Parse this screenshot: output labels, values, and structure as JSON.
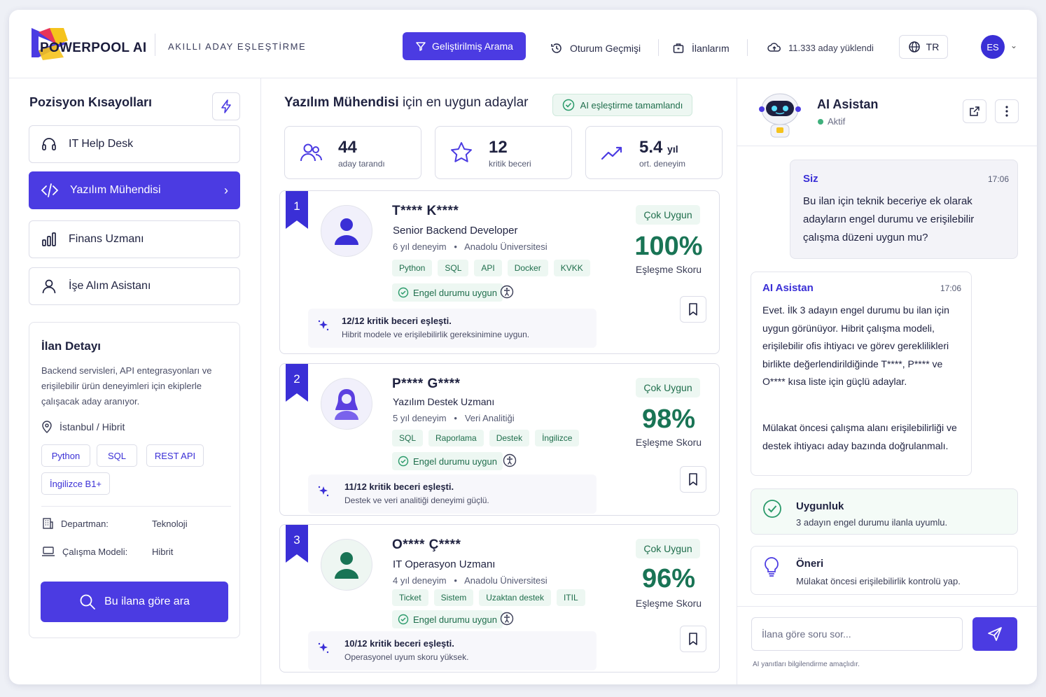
{
  "header": {
    "brand": "POWERPOOL AI",
    "tagline": "AKILLI ADAY EŞLEŞTİRME",
    "enhanced_search": "Geliştirilmiş Arama",
    "session_history": "Oturum Geçmişi",
    "my_listings": "İlanlarım",
    "uploaded": "11.333 aday yüklendi",
    "language": "TR",
    "avatar_initials": "ES"
  },
  "sidebar": {
    "title": "Pozisyon Kısayolları",
    "positions": [
      {
        "label": "IT Help Desk",
        "icon": "headset-icon"
      },
      {
        "label": "Yazılım Mühendisi",
        "icon": "code-icon",
        "active": true
      },
      {
        "label": "Finans Uzmanı",
        "icon": "bar-chart-icon"
      },
      {
        "label": "İşe Alım Asistanı",
        "icon": "user-icon"
      }
    ],
    "job": {
      "title": "İlan Detayı",
      "description": "Backend servisleri, API entegrasyonları ve erişilebilir ürün deneyimleri için ekiplerle çalışacak aday aranıyor.",
      "location": "İstanbul / Hibrit",
      "skills": [
        "Python",
        "SQL",
        "REST API",
        "İngilizce B1+"
      ],
      "department_label": "Departman:",
      "department": "Teknoloji",
      "work_model_label": "Çalışma Modeli:",
      "work_model": "Hibrit",
      "search_button": "Bu ilana göre ara"
    }
  },
  "main": {
    "title_bold": "Yazılım Mühendisi",
    "title_rest": "için en uygun adaylar",
    "status": "AI eşleştirme tamamlandı",
    "stats": [
      {
        "value": "44",
        "unit": "",
        "label": "aday tarandı"
      },
      {
        "value": "12",
        "unit": "",
        "label": "kritik beceri"
      },
      {
        "value": "5.4",
        "unit": "yıl",
        "label": "ort. deneyim"
      }
    ],
    "candidates": [
      {
        "rank": "1",
        "name": "T**** K****",
        "title": "Senior Backend Developer",
        "experience": "6 yıl deneyim",
        "school": "Anadolu Üniversitesi",
        "skills": [
          "Python",
          "SQL",
          "API",
          "Docker",
          "KVKK"
        ],
        "accessibility": "Engel durumu uygun",
        "note_title": "12/12 kritik beceri eşleşti.",
        "note_text": "Hibrit modele ve erişilebilirlik gereksinimine uygun.",
        "badge": "Çok Uygun",
        "score": "100%",
        "score_label": "Eşleşme Skoru",
        "color": "#3a2fd6"
      },
      {
        "rank": "2",
        "name": "P**** G****",
        "title": "Yazılım Destek Uzmanı",
        "experience": "5 yıl deneyim",
        "school": "Veri Analitiği",
        "skills": [
          "SQL",
          "Raporlama",
          "Destek",
          "İngilizce"
        ],
        "accessibility": "Engel durumu uygun",
        "note_title": "11/12 kritik beceri eşleşti.",
        "note_text": "Destek ve veri analitiği deneyimi güçlü.",
        "badge": "Çok Uygun",
        "score": "98%",
        "score_label": "Eşleşme Skoru",
        "color": "#5b3fe0"
      },
      {
        "rank": "3",
        "name": "O**** Ç****",
        "title": "IT Operasyon Uzmanı",
        "experience": "4 yıl deneyim",
        "school": "Anadolu Üniversitesi",
        "skills": [
          "Ticket",
          "Sistem",
          "Uzaktan destek",
          "ITIL"
        ],
        "accessibility": "Engel durumu uygun",
        "note_title": "10/12 kritik beceri eşleşti.",
        "note_text": "Operasyonel uyum skoru yüksek.",
        "badge": "Çok Uygun",
        "score": "96%",
        "score_label": "Eşleşme Skoru",
        "color": "#197455"
      }
    ]
  },
  "assistant": {
    "title": "AI Asistan",
    "status": "Aktif",
    "user_name": "Siz",
    "user_time": "17:06",
    "user_msg": "Bu ilan için teknik beceriye ek olarak adayların engel durumu ve erişilebilir çalışma düzeni uygun mu?",
    "ai_name": "AI Asistan",
    "ai_time": "17:06",
    "ai_msg_1": "Evet. İlk 3 adayın engel durumu bu ilan için uygun görünüyor. Hibrit çalışma modeli, erişilebilir ofis ihtiyacı ve görev gereklilikleri birlikte değerlendirildiğinde T****, P**** ve O**** kısa liste için güçlü adaylar.",
    "ai_msg_2": "Mülakat öncesi çalışma alanı erişilebilirliği ve destek ihtiyacı aday bazında doğrulanmalı.",
    "fit_title": "Uygunluk",
    "fit_text": "3 adayın engel durumu ilanla uyumlu.",
    "tip_title": "Öneri",
    "tip_text": "Mülakat öncesi erişilebilirlik kontrolü yap.",
    "input_placeholder": "İlana göre soru sor...",
    "disclaimer": "AI yanıtları bilgilendirme amaçlıdır."
  }
}
